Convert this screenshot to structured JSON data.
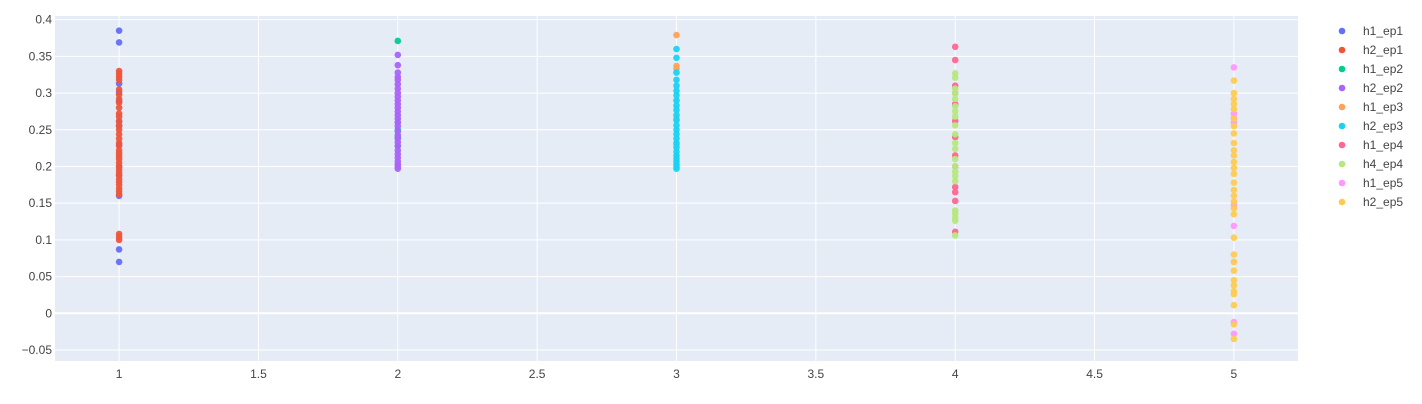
{
  "chart_data": {
    "type": "scatter",
    "title": "",
    "xlabel": "",
    "ylabel": "",
    "xlim": [
      0.77,
      5.23
    ],
    "ylim": [
      -0.065,
      0.405
    ],
    "xticks": [
      1,
      1.5,
      2,
      2.5,
      3,
      3.5,
      4,
      4.5,
      5
    ],
    "xtick_labels": [
      "1",
      "1.5",
      "2",
      "2.5",
      "3",
      "3.5",
      "4",
      "4.5",
      "5"
    ],
    "yticks": [
      -0.05,
      0,
      0.05,
      0.1,
      0.15,
      0.2,
      0.25,
      0.3,
      0.35,
      0.4
    ],
    "ytick_labels": [
      "−0.05",
      "0",
      "0.05",
      "0.1",
      "0.15",
      "0.2",
      "0.25",
      "0.3",
      "0.35",
      "0.4"
    ],
    "grid": true,
    "legend_position": "right",
    "plot_background": "#e5ecf6",
    "series": [
      {
        "name": "h1_ep1",
        "color": "#636efa",
        "x": 1,
        "values": [
          0.385,
          0.369,
          0.313,
          0.301,
          0.289,
          0.262,
          0.255,
          0.23,
          0.2,
          0.188,
          0.16,
          0.087,
          0.07
        ]
      },
      {
        "name": "h2_ep1",
        "color": "#ef553b",
        "x": 1,
        "values": [
          0.33,
          0.326,
          0.322,
          0.318,
          0.305,
          0.298,
          0.292,
          0.287,
          0.28,
          0.272,
          0.268,
          0.261,
          0.256,
          0.25,
          0.244,
          0.238,
          0.232,
          0.228,
          0.222,
          0.218,
          0.214,
          0.21,
          0.205,
          0.2,
          0.196,
          0.192,
          0.188,
          0.183,
          0.179,
          0.175,
          0.17,
          0.166,
          0.162,
          0.108,
          0.104,
          0.1
        ]
      },
      {
        "name": "h1_ep2",
        "color": "#00cc96",
        "x": 2,
        "values": [
          0.371,
          0.26,
          0.25,
          0.24,
          0.228
        ]
      },
      {
        "name": "h2_ep2",
        "color": "#ab63fa",
        "x": 2,
        "values": [
          0.352,
          0.338,
          0.328,
          0.322,
          0.318,
          0.312,
          0.306,
          0.3,
          0.295,
          0.29,
          0.285,
          0.28,
          0.275,
          0.27,
          0.265,
          0.26,
          0.255,
          0.248,
          0.243,
          0.238,
          0.233,
          0.228,
          0.222,
          0.217,
          0.212,
          0.207,
          0.203,
          0.2,
          0.197
        ]
      },
      {
        "name": "h1_ep3",
        "color": "#ffa15a",
        "x": 3,
        "values": [
          0.379,
          0.337,
          0.333,
          0.29,
          0.265,
          0.23
        ]
      },
      {
        "name": "h2_ep3",
        "color": "#19d3f3",
        "x": 3,
        "values": [
          0.36,
          0.348,
          0.328,
          0.318,
          0.31,
          0.303,
          0.297,
          0.29,
          0.283,
          0.277,
          0.27,
          0.263,
          0.256,
          0.25,
          0.244,
          0.238,
          0.232,
          0.226,
          0.22,
          0.215,
          0.211,
          0.207,
          0.203,
          0.2,
          0.197
        ]
      },
      {
        "name": "h1_ep4",
        "color": "#ff6692",
        "x": 4,
        "values": [
          0.363,
          0.345,
          0.31,
          0.3,
          0.285,
          0.262,
          0.24,
          0.215,
          0.2,
          0.172,
          0.165,
          0.153,
          0.111
        ]
      },
      {
        "name": "h4_ep4",
        "color": "#b6e880",
        "x": 4,
        "values": [
          0.327,
          0.321,
          0.306,
          0.3,
          0.292,
          0.282,
          0.275,
          0.268,
          0.256,
          0.244,
          0.232,
          0.224,
          0.21,
          0.2,
          0.193,
          0.187,
          0.18,
          0.14,
          0.136,
          0.13,
          0.126,
          0.106
        ]
      },
      {
        "name": "h1_ep5",
        "color": "#ff97ff",
        "x": 5,
        "values": [
          0.335,
          0.272,
          0.266,
          0.26,
          0.147,
          0.119,
          0.07,
          -0.012,
          -0.028
        ]
      },
      {
        "name": "h2_ep5",
        "color": "#fecb52",
        "x": 5,
        "values": [
          0.317,
          0.3,
          0.292,
          0.285,
          0.278,
          0.265,
          0.255,
          0.245,
          0.232,
          0.222,
          0.215,
          0.206,
          0.198,
          0.19,
          0.178,
          0.168,
          0.16,
          0.152,
          0.143,
          0.135,
          0.103,
          0.08,
          0.07,
          0.058,
          0.045,
          0.038,
          0.03,
          0.026,
          0.011,
          -0.015,
          -0.035
        ]
      }
    ]
  }
}
